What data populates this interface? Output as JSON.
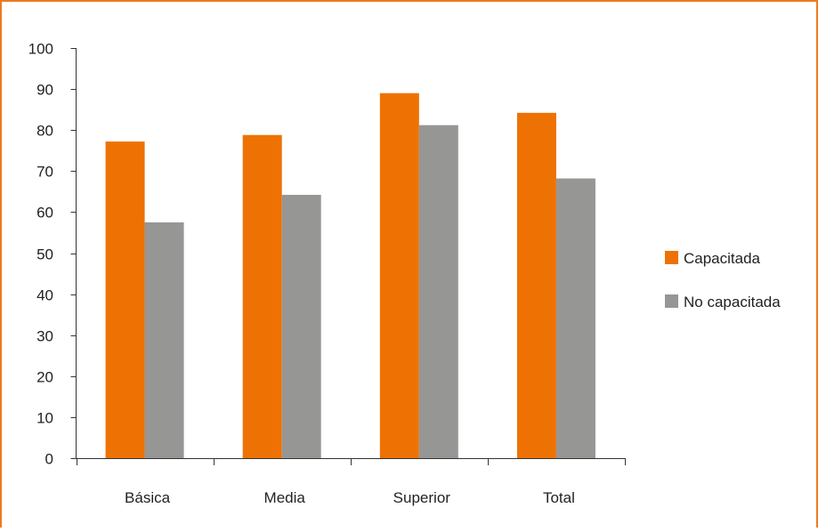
{
  "chart_data": {
    "type": "bar",
    "categories": [
      "Básica",
      "Media",
      "Superior",
      "Total"
    ],
    "series": [
      {
        "name": "Capacitada",
        "values": [
          77.2,
          78.8,
          89.0,
          84.2
        ],
        "color": "#EE7203"
      },
      {
        "name": "No capacitada",
        "values": [
          57.5,
          64.2,
          81.2,
          68.2
        ],
        "color": "#969695"
      }
    ],
    "title": "",
    "xlabel": "",
    "ylabel": "",
    "ylim": [
      0,
      100
    ],
    "yticks": [
      0,
      10,
      20,
      30,
      40,
      50,
      60,
      70,
      80,
      90,
      100
    ],
    "grid": false,
    "legend_position": "right",
    "frame_color": "#EE7A1E"
  }
}
